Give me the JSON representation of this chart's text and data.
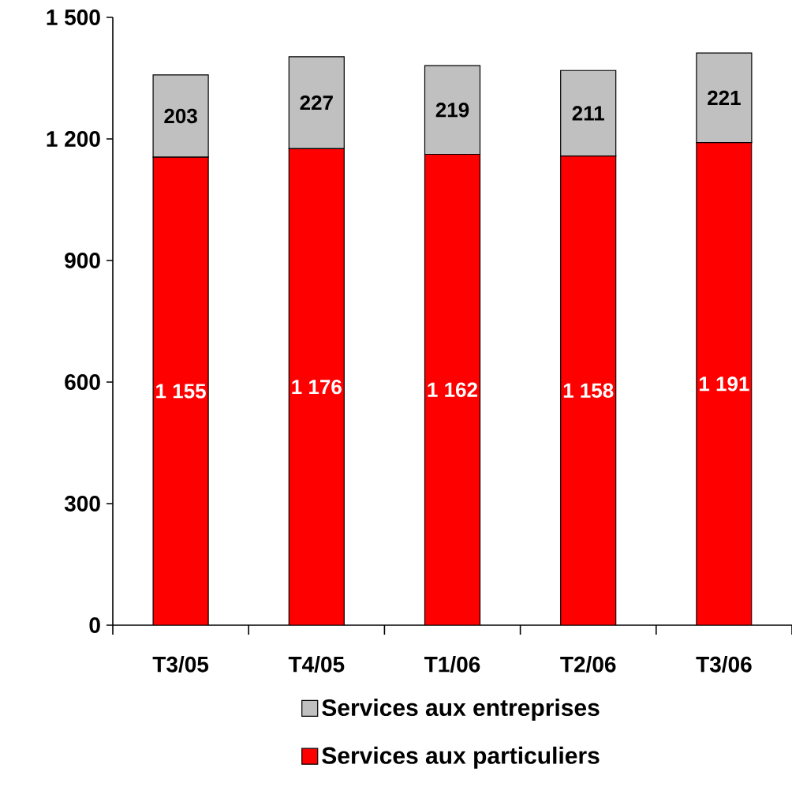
{
  "chart_data": {
    "type": "bar",
    "stacked": true,
    "categories": [
      "T3/05",
      "T4/05",
      "T1/06",
      "T2/06",
      "T3/06"
    ],
    "series": [
      {
        "name": "Services aux particuliers",
        "color": "#ff0000",
        "values": [
          1155,
          1176,
          1162,
          1158,
          1191
        ],
        "value_labels": [
          "1 155",
          "1 176",
          "1 162",
          "1 158",
          "1 191"
        ]
      },
      {
        "name": "Services aux entreprises",
        "color": "#c0c0c0",
        "values": [
          203,
          227,
          219,
          211,
          221
        ],
        "value_labels": [
          "203",
          "227",
          "219",
          "211",
          "221"
        ]
      }
    ],
    "ylim": [
      0,
      1500
    ],
    "yticks": [
      0,
      300,
      600,
      900,
      {
        "value": 1200,
        "label": "1 200"
      },
      {
        "value": 1500,
        "label": "1 500"
      }
    ],
    "grid": false,
    "legend": "bottom"
  }
}
